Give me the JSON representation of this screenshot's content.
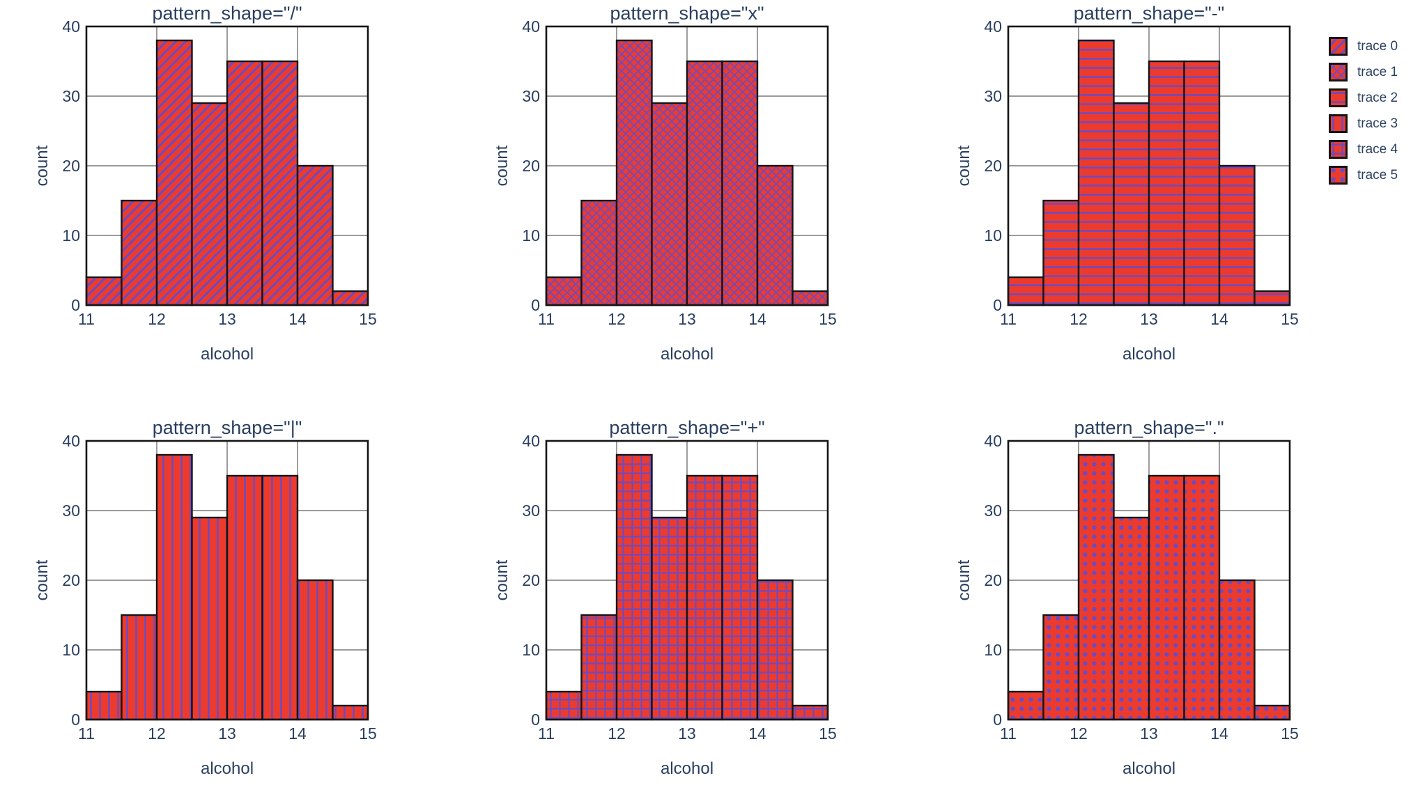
{
  "figure": {
    "background": "#ffffff",
    "text_color": "#2a3f5f",
    "bar_color": "#ec3b2d",
    "pattern_color": "#6e4ac0",
    "grid_color": "#8c8c8c",
    "frame_color": "#151515"
  },
  "chart_data": {
    "type": "bar",
    "subtype": "histogram-grid",
    "rows": 2,
    "cols": 3,
    "xlabel": "alcohol",
    "ylabel": "count",
    "x_range": [
      11,
      15
    ],
    "y_range": [
      0,
      40
    ],
    "x_ticks": [
      11,
      12,
      13,
      14,
      15
    ],
    "y_ticks": [
      0,
      10,
      20,
      30,
      40
    ],
    "grid": "on",
    "bin_edges": [
      11,
      11.5,
      12,
      12.5,
      13,
      13.5,
      14,
      14.5,
      15
    ],
    "counts": [
      4,
      15,
      38,
      29,
      35,
      35,
      20,
      2
    ],
    "subplots": [
      {
        "title": "pattern_shape=\"/\"",
        "pattern": "diagonal"
      },
      {
        "title": "pattern_shape=\"x\"",
        "pattern": "cross-diagonal"
      },
      {
        "title": "pattern_shape=\"-\"",
        "pattern": "horizontal"
      },
      {
        "title": "pattern_shape=\"|\"",
        "pattern": "vertical"
      },
      {
        "title": "pattern_shape=\"+\"",
        "pattern": "grid"
      },
      {
        "title": "pattern_shape=\".\"",
        "pattern": "dots"
      }
    ]
  },
  "legend": {
    "position": "top-right-outside",
    "items": [
      {
        "label": "trace 0",
        "pattern": "diagonal"
      },
      {
        "label": "trace 1",
        "pattern": "cross-diagonal"
      },
      {
        "label": "trace 2",
        "pattern": "horizontal"
      },
      {
        "label": "trace 3",
        "pattern": "vertical"
      },
      {
        "label": "trace 4",
        "pattern": "grid"
      },
      {
        "label": "trace 5",
        "pattern": "dots"
      }
    ]
  }
}
